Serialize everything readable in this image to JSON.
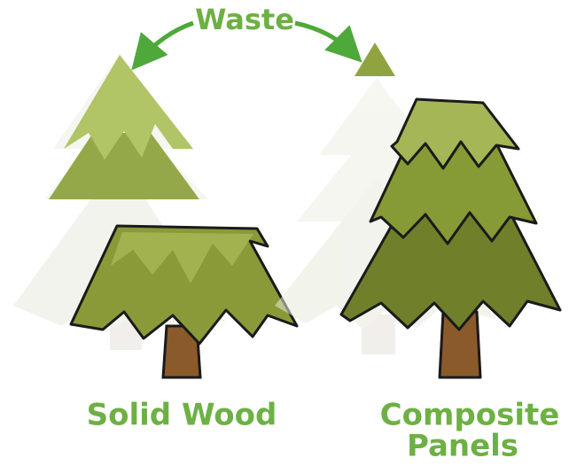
{
  "labels": {
    "waste": "Waste",
    "solid_wood": "Solid Wood",
    "composite_panels": [
      "Composite",
      "Panels"
    ]
  }
}
